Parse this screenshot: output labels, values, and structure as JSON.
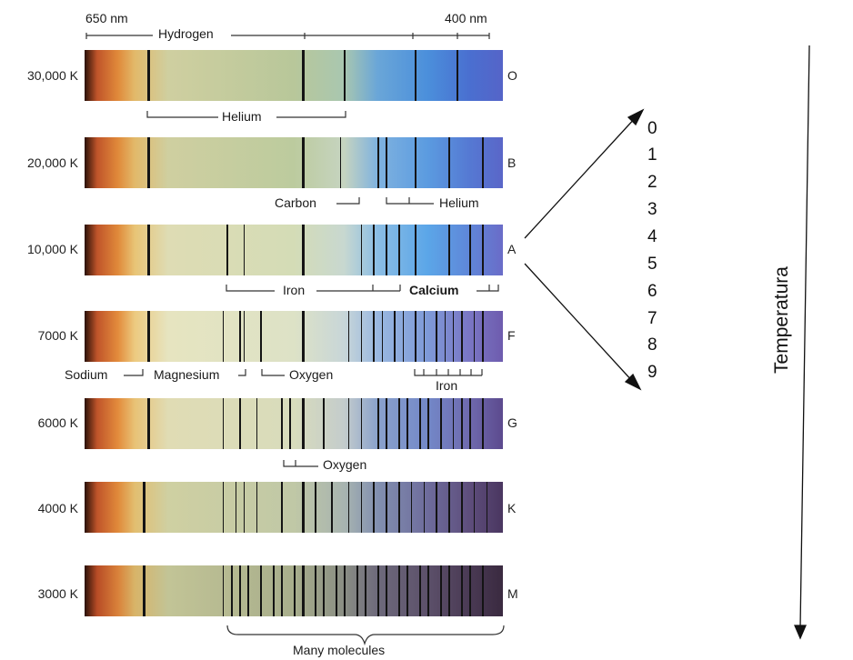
{
  "wavelength": {
    "left": "650 nm",
    "right": "400 nm"
  },
  "spectra": [
    {
      "temp": "30,000 K",
      "cls": "O",
      "lines": [
        0.15,
        0.52,
        0.62,
        0.79,
        0.89
      ]
    },
    {
      "temp": "20,000 K",
      "cls": "B",
      "lines": [
        0.15,
        0.52,
        0.61,
        0.7,
        0.72,
        0.79,
        0.87,
        0.95
      ]
    },
    {
      "temp": "10,000 K",
      "cls": "A",
      "lines": [
        0.15,
        0.34,
        0.38,
        0.52,
        0.66,
        0.69,
        0.72,
        0.75,
        0.79,
        0.87,
        0.92,
        0.95
      ]
    },
    {
      "temp": "7000 K",
      "cls": "F",
      "lines": [
        0.15,
        0.33,
        0.37,
        0.38,
        0.42,
        0.52,
        0.63,
        0.66,
        0.69,
        0.71,
        0.74,
        0.76,
        0.79,
        0.81,
        0.84,
        0.86,
        0.88,
        0.9,
        0.93,
        0.95
      ]
    },
    {
      "temp": "6000 K",
      "cls": "G",
      "lines": [
        0.15,
        0.33,
        0.37,
        0.41,
        0.47,
        0.49,
        0.52,
        0.57,
        0.63,
        0.66,
        0.7,
        0.72,
        0.75,
        0.77,
        0.8,
        0.82,
        0.85,
        0.88,
        0.9,
        0.92,
        0.95
      ]
    },
    {
      "temp": "4000 K",
      "cls": "K",
      "lines": [
        0.14,
        0.33,
        0.36,
        0.38,
        0.41,
        0.47,
        0.52,
        0.55,
        0.59,
        0.63,
        0.66,
        0.69,
        0.72,
        0.75,
        0.78,
        0.81,
        0.84,
        0.87,
        0.9,
        0.93,
        0.96
      ]
    },
    {
      "temp": "3000 K",
      "cls": "M",
      "lines": [
        0.14,
        0.33,
        0.35,
        0.37,
        0.39,
        0.42,
        0.45,
        0.47,
        0.5,
        0.52,
        0.55,
        0.57,
        0.6,
        0.62,
        0.65,
        0.67,
        0.7,
        0.72,
        0.75,
        0.77,
        0.8,
        0.82,
        0.85,
        0.87,
        0.9,
        0.92,
        0.95
      ]
    }
  ],
  "elements": {
    "hydrogen": "Hydrogen",
    "helium1": "Helium",
    "carbon": "Carbon",
    "helium2": "Helium",
    "iron1": "Iron",
    "calcium": "Calcium",
    "sodium": "Sodium",
    "magnesium": "Magnesium",
    "oxygen1": "Oxygen",
    "iron2": "Iron",
    "oxygen2": "Oxygen",
    "molecules": "Many molecules"
  },
  "subclasses": [
    "0",
    "1",
    "2",
    "3",
    "4",
    "5",
    "6",
    "7",
    "8",
    "9"
  ],
  "axis_label": "Temperatura",
  "colors": {
    "arrow": "#111111",
    "text": "#1a1a1a"
  }
}
